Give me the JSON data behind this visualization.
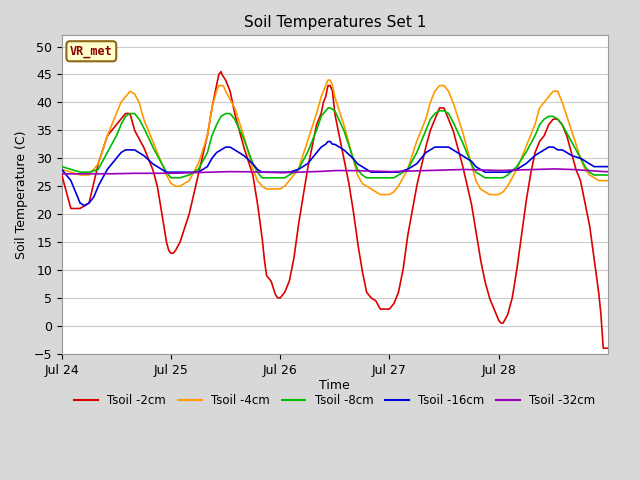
{
  "title": "Soil Temperatures Set 1",
  "xlabel": "Time",
  "ylabel": "Soil Temperature (C)",
  "ylim": [
    -5,
    52
  ],
  "yticks": [
    -5,
    0,
    5,
    10,
    15,
    20,
    25,
    30,
    35,
    40,
    45,
    50
  ],
  "figure_bg_color": "#d8d8d8",
  "plot_bg_color": "#ffffff",
  "grid_color": "#cccccc",
  "annotation_label": "VR_met",
  "annotation_color": "#8b0000",
  "annotation_bg": "#ffffcc",
  "annotation_border": "#8b6914",
  "series": {
    "Tsoil -2cm": {
      "color": "#dd0000",
      "lw": 1.2
    },
    "Tsoil -4cm": {
      "color": "#ff9900",
      "lw": 1.2
    },
    "Tsoil -8cm": {
      "color": "#00bb00",
      "lw": 1.2
    },
    "Tsoil -16cm": {
      "color": "#0000dd",
      "lw": 1.2
    },
    "Tsoil -32cm": {
      "color": "#9900bb",
      "lw": 1.2
    }
  },
  "xtick_labels": [
    "Jul 24",
    "Jul 25",
    "Jul 26",
    "Jul 27",
    "Jul 28"
  ],
  "xtick_positions": [
    0,
    24,
    48,
    72,
    96
  ],
  "total_hours": 120,
  "key_points_2cm": [
    [
      0,
      27
    ],
    [
      1,
      24
    ],
    [
      2,
      21
    ],
    [
      3,
      21
    ],
    [
      4,
      21
    ],
    [
      5,
      21.5
    ],
    [
      6,
      22
    ],
    [
      8,
      29
    ],
    [
      10,
      34
    ],
    [
      12,
      36
    ],
    [
      14,
      38
    ],
    [
      15,
      38
    ],
    [
      16,
      35
    ],
    [
      18,
      32
    ],
    [
      20,
      28
    ],
    [
      21,
      25
    ],
    [
      22,
      20
    ],
    [
      23,
      15
    ],
    [
      23.5,
      13.5
    ],
    [
      24,
      13
    ],
    [
      24.5,
      13
    ],
    [
      25,
      13.5
    ],
    [
      26,
      15
    ],
    [
      28,
      20
    ],
    [
      30,
      27
    ],
    [
      32,
      34
    ],
    [
      33,
      39
    ],
    [
      34,
      43
    ],
    [
      34.5,
      45
    ],
    [
      35,
      45.5
    ],
    [
      35.2,
      45
    ],
    [
      36,
      44
    ],
    [
      37,
      42
    ],
    [
      38,
      38
    ],
    [
      40,
      32
    ],
    [
      42,
      27
    ],
    [
      43,
      22
    ],
    [
      44,
      16
    ],
    [
      44.5,
      12
    ],
    [
      45,
      9
    ],
    [
      46,
      8
    ],
    [
      47,
      5.5
    ],
    [
      47.5,
      5
    ],
    [
      48,
      5
    ],
    [
      49,
      6
    ],
    [
      50,
      8
    ],
    [
      51,
      12
    ],
    [
      52,
      18
    ],
    [
      54,
      28
    ],
    [
      55,
      32
    ],
    [
      56,
      36
    ],
    [
      57,
      38
    ],
    [
      57.5,
      40
    ],
    [
      58,
      41
    ],
    [
      58.5,
      43
    ],
    [
      59,
      43
    ],
    [
      59.5,
      42
    ],
    [
      60,
      38
    ],
    [
      61,
      34
    ],
    [
      62,
      30
    ],
    [
      63,
      26
    ],
    [
      64,
      21
    ],
    [
      65,
      15
    ],
    [
      66,
      10
    ],
    [
      67,
      6
    ],
    [
      68,
      5
    ],
    [
      69,
      4.5
    ],
    [
      70,
      3
    ],
    [
      70.5,
      3
    ],
    [
      71,
      3
    ],
    [
      72,
      3
    ],
    [
      73,
      4
    ],
    [
      74,
      6
    ],
    [
      75,
      10
    ],
    [
      76,
      16
    ],
    [
      78,
      25
    ],
    [
      80,
      32
    ],
    [
      81,
      35
    ],
    [
      82,
      37
    ],
    [
      83,
      39
    ],
    [
      84,
      39
    ],
    [
      85,
      37
    ],
    [
      86,
      35
    ],
    [
      88,
      29
    ],
    [
      90,
      22
    ],
    [
      91,
      17
    ],
    [
      92,
      12
    ],
    [
      93,
      8
    ],
    [
      94,
      5
    ],
    [
      94.5,
      4
    ],
    [
      95,
      3
    ],
    [
      95.5,
      2
    ],
    [
      96,
      1
    ],
    [
      96.5,
      0.5
    ],
    [
      97,
      0.5
    ],
    [
      98,
      2
    ],
    [
      99,
      5
    ],
    [
      100,
      10
    ],
    [
      101,
      16
    ],
    [
      102,
      22
    ],
    [
      103,
      27
    ],
    [
      104,
      31
    ],
    [
      105,
      33
    ],
    [
      106,
      34
    ],
    [
      107,
      36
    ],
    [
      108,
      37
    ],
    [
      109,
      37
    ],
    [
      110,
      36
    ],
    [
      111,
      34
    ],
    [
      112,
      31
    ],
    [
      113,
      28
    ],
    [
      114,
      26
    ],
    [
      115,
      22
    ],
    [
      116,
      18
    ],
    [
      117,
      12
    ],
    [
      118,
      6
    ],
    [
      118.5,
      2
    ],
    [
      119,
      -4
    ]
  ],
  "key_points_4cm": [
    [
      0,
      28
    ],
    [
      2,
      27.5
    ],
    [
      4,
      27
    ],
    [
      6,
      27
    ],
    [
      8,
      29
    ],
    [
      10,
      34
    ],
    [
      12,
      38
    ],
    [
      13,
      40
    ],
    [
      14,
      41
    ],
    [
      15,
      42
    ],
    [
      16,
      41.5
    ],
    [
      17,
      40
    ],
    [
      18,
      37
    ],
    [
      20,
      33
    ],
    [
      22,
      29
    ],
    [
      23,
      27
    ],
    [
      24,
      25.5
    ],
    [
      25,
      25
    ],
    [
      26,
      25
    ],
    [
      28,
      26
    ],
    [
      30,
      29
    ],
    [
      32,
      34
    ],
    [
      33,
      39
    ],
    [
      34,
      42
    ],
    [
      34.5,
      43
    ],
    [
      35,
      43
    ],
    [
      35.5,
      43
    ],
    [
      36,
      42
    ],
    [
      38,
      39
    ],
    [
      40,
      34
    ],
    [
      42,
      28
    ],
    [
      43,
      26
    ],
    [
      44,
      25
    ],
    [
      45,
      24.5
    ],
    [
      46,
      24.5
    ],
    [
      47,
      24.5
    ],
    [
      48,
      24.5
    ],
    [
      49,
      25
    ],
    [
      50,
      26
    ],
    [
      52,
      28
    ],
    [
      54,
      33
    ],
    [
      56,
      38
    ],
    [
      57,
      41
    ],
    [
      58,
      43
    ],
    [
      58.5,
      44
    ],
    [
      59,
      44
    ],
    [
      59.5,
      43
    ],
    [
      60,
      41
    ],
    [
      62,
      36
    ],
    [
      64,
      30
    ],
    [
      65,
      27
    ],
    [
      66,
      25.5
    ],
    [
      67,
      25
    ],
    [
      68,
      24.5
    ],
    [
      69,
      24
    ],
    [
      70,
      23.5
    ],
    [
      71,
      23.5
    ],
    [
      72,
      23.5
    ],
    [
      73,
      24
    ],
    [
      74,
      25
    ],
    [
      76,
      28
    ],
    [
      78,
      33
    ],
    [
      80,
      37
    ],
    [
      81,
      40
    ],
    [
      82,
      42
    ],
    [
      83,
      43
    ],
    [
      84,
      43
    ],
    [
      85,
      42
    ],
    [
      86,
      40
    ],
    [
      88,
      35
    ],
    [
      90,
      29
    ],
    [
      91,
      26
    ],
    [
      92,
      24.5
    ],
    [
      93,
      24
    ],
    [
      94,
      23.5
    ],
    [
      95,
      23.5
    ],
    [
      96,
      23.5
    ],
    [
      97,
      24
    ],
    [
      98,
      25
    ],
    [
      100,
      28
    ],
    [
      102,
      32
    ],
    [
      104,
      36
    ],
    [
      105,
      39
    ],
    [
      106,
      40
    ],
    [
      107,
      41
    ],
    [
      108,
      42
    ],
    [
      109,
      42
    ],
    [
      110,
      40
    ],
    [
      112,
      35
    ],
    [
      114,
      30
    ],
    [
      115,
      28
    ],
    [
      116,
      27
    ],
    [
      117,
      26.5
    ],
    [
      118,
      26
    ],
    [
      119,
      26
    ]
  ],
  "key_points_8cm": [
    [
      0,
      28.5
    ],
    [
      2,
      28
    ],
    [
      4,
      27.5
    ],
    [
      6,
      27.5
    ],
    [
      8,
      28
    ],
    [
      10,
      31
    ],
    [
      12,
      34
    ],
    [
      13,
      36
    ],
    [
      14,
      37.5
    ],
    [
      15,
      38
    ],
    [
      16,
      38
    ],
    [
      17,
      37
    ],
    [
      18,
      35.5
    ],
    [
      20,
      32
    ],
    [
      22,
      29
    ],
    [
      23,
      27.5
    ],
    [
      24,
      26.5
    ],
    [
      25,
      26.5
    ],
    [
      26,
      26.5
    ],
    [
      28,
      27
    ],
    [
      30,
      28
    ],
    [
      32,
      31
    ],
    [
      33,
      34
    ],
    [
      34,
      36
    ],
    [
      35,
      37.5
    ],
    [
      36,
      38
    ],
    [
      37,
      38
    ],
    [
      38,
      37
    ],
    [
      40,
      33.5
    ],
    [
      42,
      29
    ],
    [
      43,
      27.5
    ],
    [
      44,
      26.5
    ],
    [
      46,
      26.5
    ],
    [
      47,
      26.5
    ],
    [
      48,
      26.5
    ],
    [
      49,
      26.5
    ],
    [
      50,
      27
    ],
    [
      52,
      28
    ],
    [
      54,
      31
    ],
    [
      56,
      35
    ],
    [
      57,
      37.5
    ],
    [
      58,
      38.5
    ],
    [
      58.5,
      39
    ],
    [
      59,
      39
    ],
    [
      60,
      38.5
    ],
    [
      62,
      35
    ],
    [
      64,
      30
    ],
    [
      65,
      28
    ],
    [
      66,
      27
    ],
    [
      67,
      26.5
    ],
    [
      68,
      26.5
    ],
    [
      69,
      26.5
    ],
    [
      70,
      26.5
    ],
    [
      71,
      26.5
    ],
    [
      72,
      26.5
    ],
    [
      73,
      26.5
    ],
    [
      74,
      27
    ],
    [
      76,
      28
    ],
    [
      78,
      31
    ],
    [
      80,
      35
    ],
    [
      81,
      37
    ],
    [
      82,
      38
    ],
    [
      83,
      38.5
    ],
    [
      84,
      38.5
    ],
    [
      85,
      38
    ],
    [
      86,
      36.5
    ],
    [
      88,
      33
    ],
    [
      90,
      29
    ],
    [
      91,
      27.5
    ],
    [
      92,
      27
    ],
    [
      93,
      26.5
    ],
    [
      94,
      26.5
    ],
    [
      95,
      26.5
    ],
    [
      96,
      26.5
    ],
    [
      97,
      26.5
    ],
    [
      98,
      27
    ],
    [
      100,
      28.5
    ],
    [
      102,
      31
    ],
    [
      104,
      34
    ],
    [
      105,
      36
    ],
    [
      106,
      37
    ],
    [
      107,
      37.5
    ],
    [
      108,
      37.5
    ],
    [
      109,
      37
    ],
    [
      110,
      36
    ],
    [
      112,
      33
    ],
    [
      114,
      30
    ],
    [
      115,
      28.5
    ],
    [
      116,
      27.5
    ],
    [
      117,
      27
    ],
    [
      118,
      27
    ],
    [
      119,
      27
    ]
  ],
  "key_points_16cm": [
    [
      0,
      28
    ],
    [
      1,
      27
    ],
    [
      2,
      26
    ],
    [
      3,
      24
    ],
    [
      4,
      22
    ],
    [
      5,
      21.5
    ],
    [
      6,
      22
    ],
    [
      7,
      23
    ],
    [
      8,
      25
    ],
    [
      10,
      28
    ],
    [
      12,
      30
    ],
    [
      13,
      31
    ],
    [
      14,
      31.5
    ],
    [
      15,
      31.5
    ],
    [
      16,
      31.5
    ],
    [
      17,
      31
    ],
    [
      18,
      30.5
    ],
    [
      20,
      29
    ],
    [
      22,
      28
    ],
    [
      23,
      27.5
    ],
    [
      24,
      27.5
    ],
    [
      25,
      27.5
    ],
    [
      26,
      27.5
    ],
    [
      28,
      27.5
    ],
    [
      30,
      27.5
    ],
    [
      31,
      28
    ],
    [
      32,
      28.5
    ],
    [
      33,
      30
    ],
    [
      34,
      31
    ],
    [
      35,
      31.5
    ],
    [
      36,
      32
    ],
    [
      37,
      32
    ],
    [
      38,
      31.5
    ],
    [
      39,
      31
    ],
    [
      40,
      30.5
    ],
    [
      42,
      29
    ],
    [
      43,
      28
    ],
    [
      44,
      27.5
    ],
    [
      46,
      27.5
    ],
    [
      47,
      27.5
    ],
    [
      48,
      27.5
    ],
    [
      49,
      27.5
    ],
    [
      50,
      27.5
    ],
    [
      52,
      28
    ],
    [
      54,
      29
    ],
    [
      56,
      31
    ],
    [
      57,
      32
    ],
    [
      58,
      32.5
    ],
    [
      58.5,
      33
    ],
    [
      59,
      33
    ],
    [
      59.5,
      32.5
    ],
    [
      60,
      32.5
    ],
    [
      61,
      32
    ],
    [
      62,
      31.5
    ],
    [
      64,
      30
    ],
    [
      65,
      29
    ],
    [
      66,
      28.5
    ],
    [
      67,
      28
    ],
    [
      68,
      27.5
    ],
    [
      70,
      27.5
    ],
    [
      71,
      27.5
    ],
    [
      72,
      27.5
    ],
    [
      73,
      27.5
    ],
    [
      74,
      27.5
    ],
    [
      76,
      28
    ],
    [
      78,
      29
    ],
    [
      80,
      31
    ],
    [
      81,
      31.5
    ],
    [
      82,
      32
    ],
    [
      83,
      32
    ],
    [
      84,
      32
    ],
    [
      85,
      32
    ],
    [
      86,
      31.5
    ],
    [
      87,
      31
    ],
    [
      88,
      30.5
    ],
    [
      90,
      29.5
    ],
    [
      91,
      28.5
    ],
    [
      92,
      28
    ],
    [
      93,
      27.5
    ],
    [
      94,
      27.5
    ],
    [
      95,
      27.5
    ],
    [
      96,
      27.5
    ],
    [
      97,
      27.5
    ],
    [
      98,
      27.5
    ],
    [
      100,
      28
    ],
    [
      102,
      29
    ],
    [
      104,
      30.5
    ],
    [
      105,
      31
    ],
    [
      106,
      31.5
    ],
    [
      107,
      32
    ],
    [
      108,
      32
    ],
    [
      109,
      31.5
    ],
    [
      110,
      31.5
    ],
    [
      111,
      31
    ],
    [
      112,
      30.5
    ],
    [
      114,
      30
    ],
    [
      115,
      29.5
    ],
    [
      116,
      29
    ],
    [
      117,
      28.5
    ],
    [
      118,
      28.5
    ],
    [
      119,
      28.5
    ]
  ],
  "key_points_32cm": [
    [
      0,
      27.2
    ],
    [
      5,
      27.2
    ],
    [
      10,
      27.2
    ],
    [
      15,
      27.3
    ],
    [
      20,
      27.3
    ],
    [
      24,
      27.3
    ],
    [
      28,
      27.4
    ],
    [
      32,
      27.5
    ],
    [
      36,
      27.6
    ],
    [
      40,
      27.6
    ],
    [
      44,
      27.5
    ],
    [
      48,
      27.4
    ],
    [
      52,
      27.5
    ],
    [
      56,
      27.6
    ],
    [
      60,
      27.8
    ],
    [
      64,
      27.8
    ],
    [
      68,
      27.7
    ],
    [
      72,
      27.6
    ],
    [
      76,
      27.7
    ],
    [
      80,
      27.8
    ],
    [
      84,
      27.9
    ],
    [
      88,
      28.0
    ],
    [
      92,
      27.9
    ],
    [
      96,
      27.8
    ],
    [
      100,
      27.9
    ],
    [
      104,
      28.0
    ],
    [
      108,
      28.1
    ],
    [
      112,
      28.0
    ],
    [
      116,
      27.8
    ],
    [
      119,
      27.6
    ]
  ]
}
